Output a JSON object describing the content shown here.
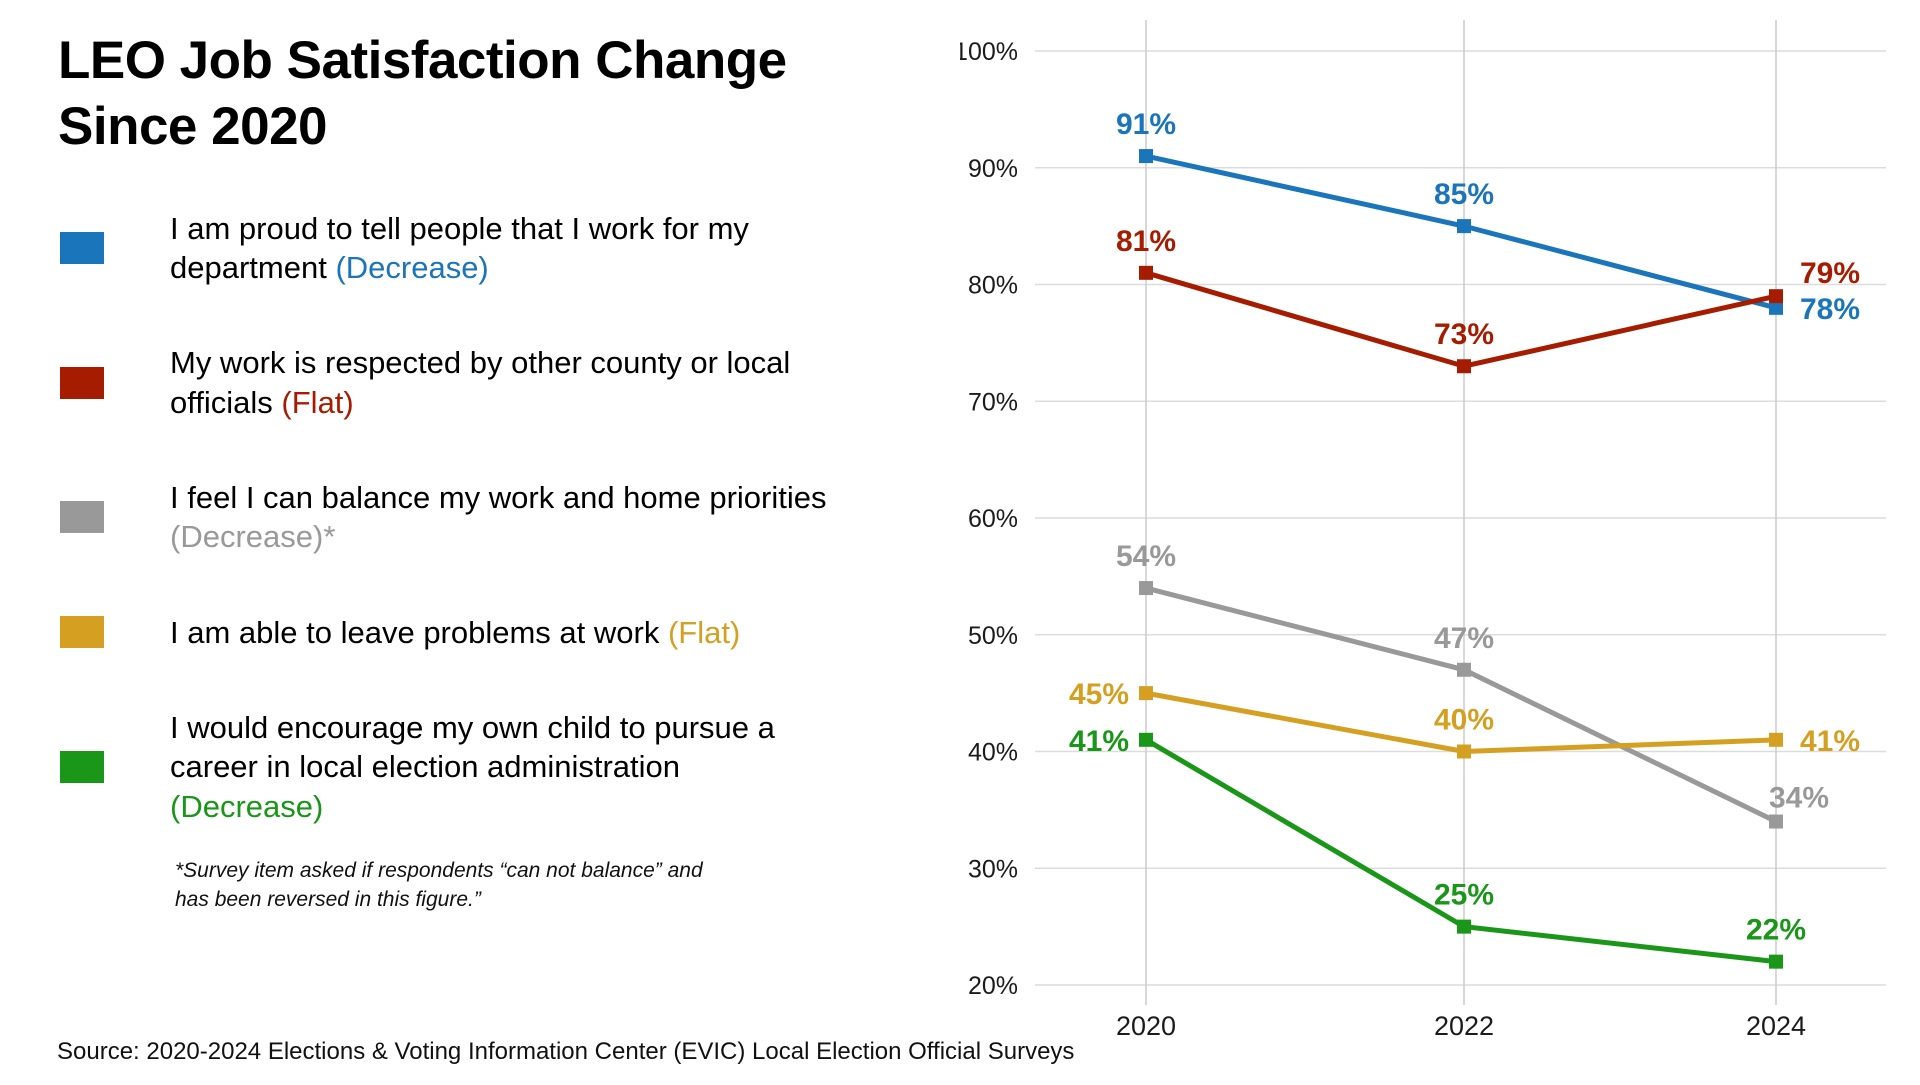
{
  "title_lines": [
    "LEO Job Satisfaction Change",
    "Since 2020"
  ],
  "footnote": "*Survey item asked if respondents “can not balance” and has been reversed in this figure.”",
  "source": "Source: 2020-2024 Elections & Voting Information Center (EVIC) Local Election Official Surveys",
  "chart_data": {
    "type": "line",
    "title": "LEO Job Satisfaction Change Since 2020",
    "categories": [
      "2020",
      "2022",
      "2024"
    ],
    "ylim": [
      20,
      100
    ],
    "y_ticks": [
      100,
      90,
      80,
      70,
      60,
      50,
      40,
      30,
      20
    ],
    "y_tick_suffix": "%",
    "grid": true,
    "data_labels": true,
    "legend_position": "left",
    "series": [
      {
        "name": "I am proud to tell people that I work for my department",
        "trend": "(Decrease)",
        "color": "#1b75bb",
        "values": [
          91,
          85,
          78
        ]
      },
      {
        "name": "My work is respected by other county or local officials",
        "trend": "(Flat)",
        "color": "#a61c00",
        "values": [
          81,
          73,
          79
        ]
      },
      {
        "name": "I feel I can balance my work and home priorities",
        "trend": "(Decrease)*",
        "color": "#999999",
        "values": [
          54,
          47,
          34
        ]
      },
      {
        "name": "I am able to leave problems at work",
        "trend": "(Flat)",
        "color": "#d5a021",
        "values": [
          45,
          40,
          41
        ]
      },
      {
        "name": "I would encourage my own child to pursue a career in local election administration",
        "trend": "(Decrease)",
        "color": "#1a9618",
        "values": [
          41,
          25,
          22
        ]
      }
    ]
  }
}
